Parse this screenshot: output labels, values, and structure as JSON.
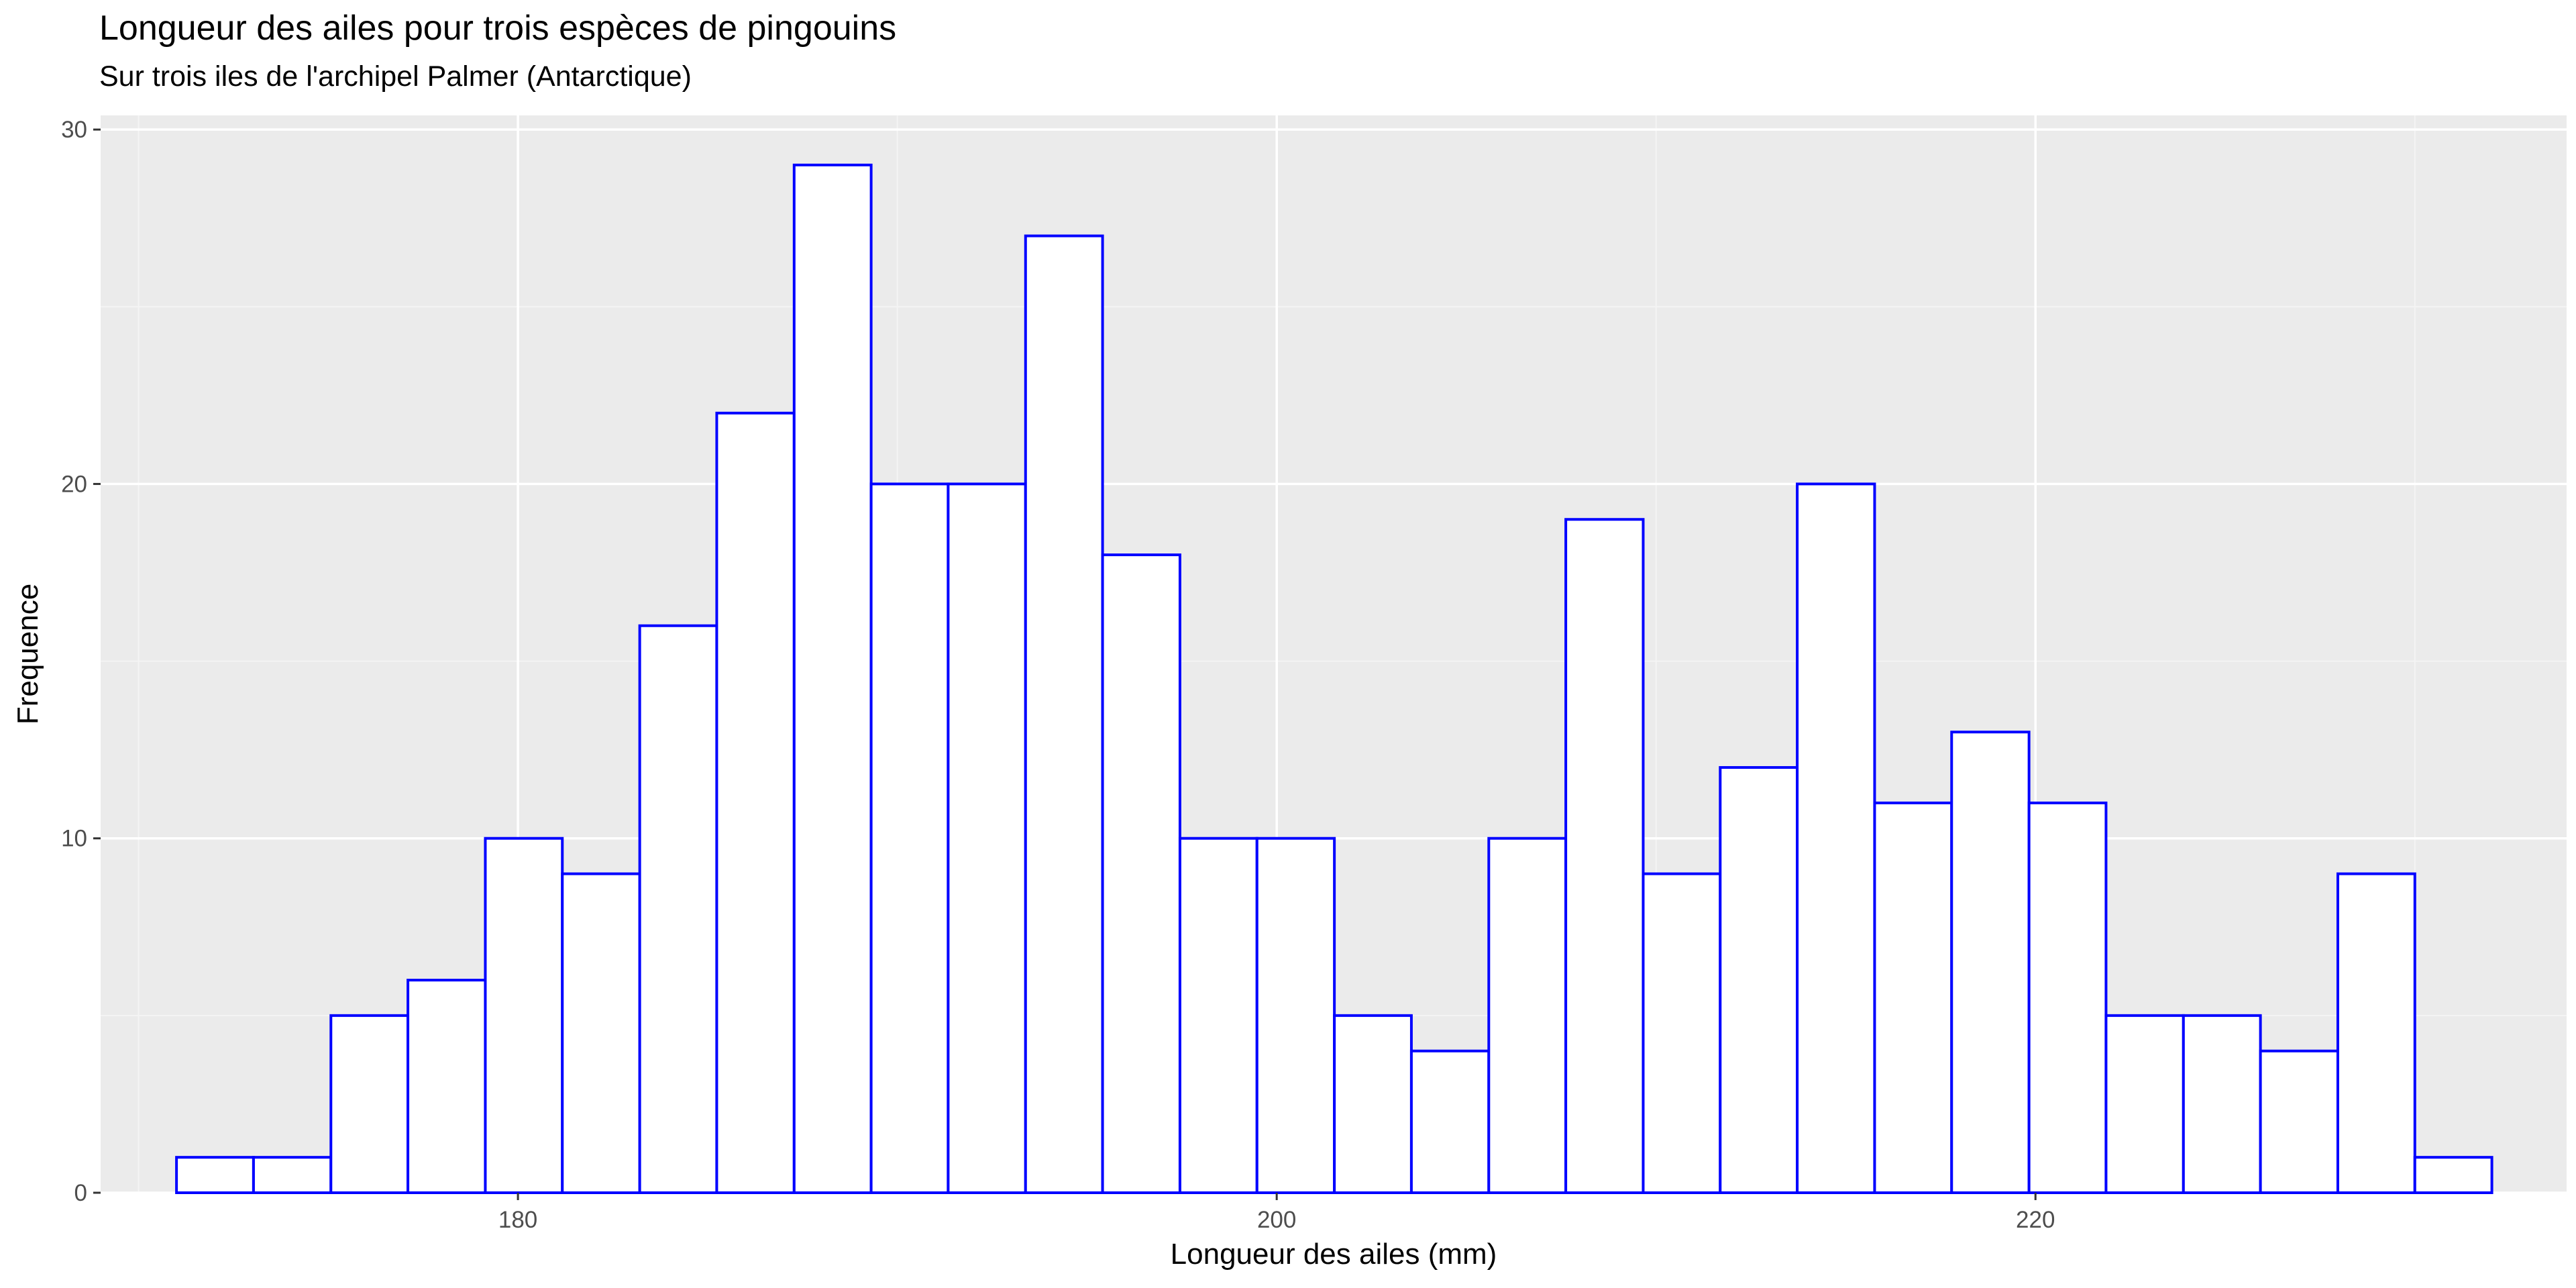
{
  "chart_data": {
    "type": "histogram",
    "title": "Longueur des ailes pour trois espèces de pingouins",
    "subtitle": "Sur trois iles de l'archipel Palmer (Antarctique)",
    "xlabel": "Longueur des ailes (mm)",
    "ylabel": "Frequence",
    "bin_width": 2.0345,
    "bins": [
      {
        "x0": 171.0,
        "x1": 173.03,
        "count": 1
      },
      {
        "x0": 173.03,
        "x1": 175.07,
        "count": 1
      },
      {
        "x0": 175.07,
        "x1": 177.1,
        "count": 5
      },
      {
        "x0": 177.1,
        "x1": 179.14,
        "count": 6
      },
      {
        "x0": 179.14,
        "x1": 181.17,
        "count": 10
      },
      {
        "x0": 181.17,
        "x1": 183.21,
        "count": 9
      },
      {
        "x0": 183.21,
        "x1": 185.24,
        "count": 16
      },
      {
        "x0": 185.24,
        "x1": 187.28,
        "count": 22
      },
      {
        "x0": 187.28,
        "x1": 189.31,
        "count": 29
      },
      {
        "x0": 189.31,
        "x1": 191.34,
        "count": 20
      },
      {
        "x0": 191.34,
        "x1": 193.38,
        "count": 20
      },
      {
        "x0": 193.38,
        "x1": 195.41,
        "count": 27
      },
      {
        "x0": 195.41,
        "x1": 197.45,
        "count": 18
      },
      {
        "x0": 197.45,
        "x1": 199.48,
        "count": 10
      },
      {
        "x0": 199.48,
        "x1": 201.52,
        "count": 10
      },
      {
        "x0": 201.52,
        "x1": 203.55,
        "count": 5
      },
      {
        "x0": 203.55,
        "x1": 205.59,
        "count": 4
      },
      {
        "x0": 205.59,
        "x1": 207.62,
        "count": 10
      },
      {
        "x0": 207.62,
        "x1": 209.66,
        "count": 19
      },
      {
        "x0": 209.66,
        "x1": 211.69,
        "count": 9
      },
      {
        "x0": 211.69,
        "x1": 213.72,
        "count": 12
      },
      {
        "x0": 213.72,
        "x1": 215.76,
        "count": 20
      },
      {
        "x0": 215.76,
        "x1": 217.79,
        "count": 11
      },
      {
        "x0": 217.79,
        "x1": 219.83,
        "count": 13
      },
      {
        "x0": 219.83,
        "x1": 221.86,
        "count": 11
      },
      {
        "x0": 221.86,
        "x1": 223.9,
        "count": 5
      },
      {
        "x0": 223.9,
        "x1": 225.93,
        "count": 5
      },
      {
        "x0": 225.93,
        "x1": 227.97,
        "count": 4
      },
      {
        "x0": 227.97,
        "x1": 230.0,
        "count": 9
      },
      {
        "x0": 230.0,
        "x1": 232.03,
        "count": 1
      }
    ],
    "xlim": [
      169.0,
      234.0
    ],
    "ylim": [
      0,
      30.4
    ],
    "x_ticks": [
      180,
      200,
      220
    ],
    "y_ticks": [
      0,
      10,
      20,
      30
    ],
    "grid": true,
    "legend": "none",
    "colors": {
      "bar_fill": "#ffffff",
      "bar_stroke": "#0000ff",
      "panel_background": "#ebebeb",
      "grid_major": "#ffffff",
      "grid_minor": "#f4f4f4"
    }
  }
}
